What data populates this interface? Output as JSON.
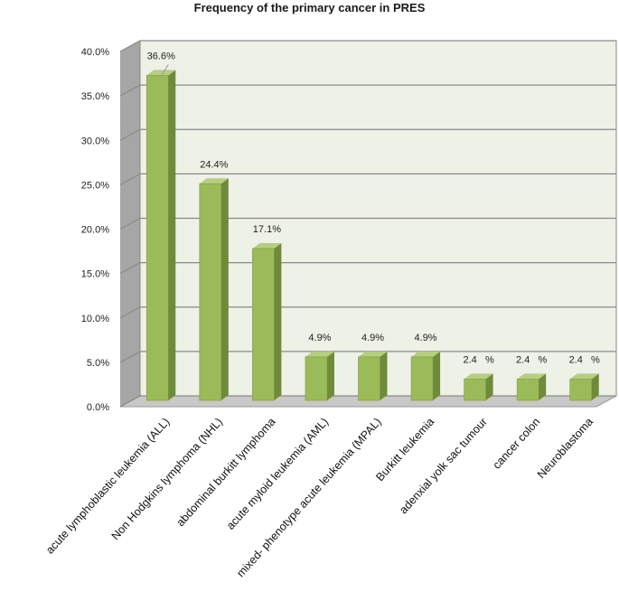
{
  "chart_data": {
    "type": "bar",
    "title": "Frequency of the primary cancer in PRES",
    "categories": [
      "acute lymphoblastic leukemia (ALL)",
      "Non Hodgkins lymphoma (NHL)",
      "abdominal burkitt lymphoma",
      "acute myloid leukemia (AML)",
      "mixed- phenotype acute leukemia (MPAL)",
      "Burkitt leukemia",
      "adenxial yolk sac tumour",
      "cancer colon",
      "Neuroblastoma"
    ],
    "values": [
      36.6,
      24.4,
      17.1,
      4.9,
      4.9,
      4.9,
      2.4,
      2.4,
      2.4
    ],
    "data_labels": [
      "36.6%",
      "24.4%",
      "17.1%",
      "4.9%",
      "4.9%",
      "4.9%",
      "2.4   %",
      "2.4   %",
      "2.4   %"
    ],
    "yticks": [
      "0.0%",
      "5.0%",
      "10.0%",
      "15.0%",
      "20.0%",
      "25.0%",
      "30.0%",
      "35.0%",
      "40.0%"
    ],
    "ylim": [
      0,
      40
    ],
    "grid": true,
    "legend": "none",
    "colors": {
      "bar_front": "#9bbb59",
      "bar_side": "#6e8a3a",
      "bar_top": "#b5cf7c",
      "back_wall": "#eef1e6",
      "side_wall": "#a6a6a6",
      "floor": "#c8c8c8",
      "grid": "#8a8a8a"
    }
  }
}
